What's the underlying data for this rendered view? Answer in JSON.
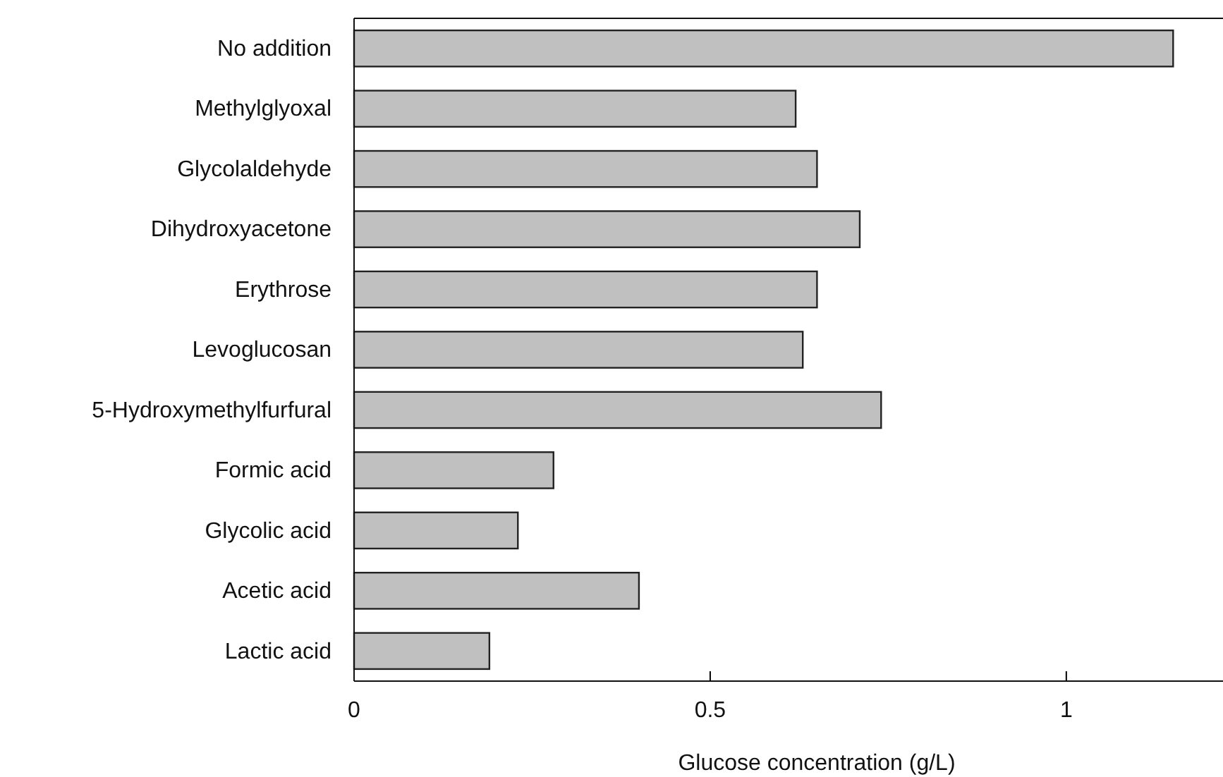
{
  "chart_data": {
    "type": "bar",
    "orientation": "horizontal",
    "xlabel": "Glucose concentration (g/L)",
    "categories": [
      "No addition",
      "Methylglyoxal",
      "Glycolaldehyde",
      "Dihydroxyacetone",
      "Erythrose",
      "Levoglucosan",
      "5-Hydroxymethylfurfural",
      "Formic acid",
      "Glycolic acid",
      "Acetic acid",
      "Lactic acid"
    ],
    "values": [
      1.15,
      0.62,
      0.65,
      0.71,
      0.65,
      0.63,
      0.74,
      0.28,
      0.23,
      0.4,
      0.19
    ],
    "color": "#c0c0c0",
    "xlim": [
      0,
      1.22
    ],
    "xticks": [
      0,
      0.5,
      1
    ],
    "grid": false
  }
}
